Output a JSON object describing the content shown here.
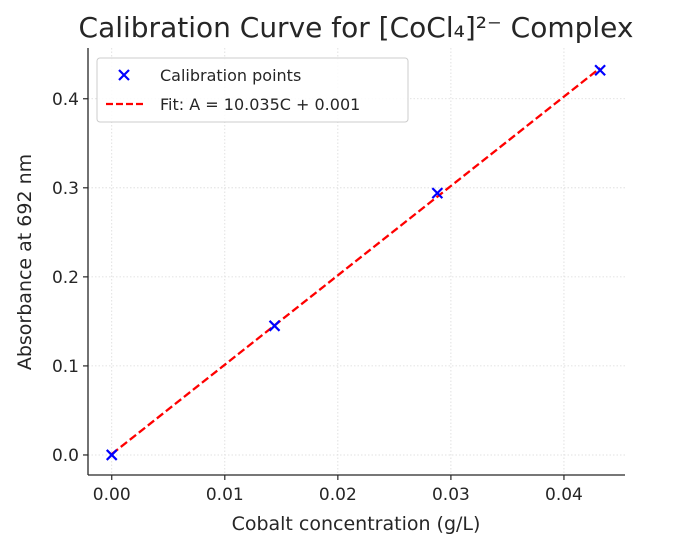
{
  "chart_data": {
    "type": "scatter",
    "title": "Calibration Curve for [CoCl₄]²⁻ Complex",
    "xlabel": "Cobalt concentration (g/L)",
    "ylabel": "Absorbance at 692 nm",
    "xlim": [
      -0.0021,
      0.0454
    ],
    "ylim": [
      -0.0225,
      0.457
    ],
    "xticks": [
      0.0,
      0.01,
      0.02,
      0.03,
      0.04
    ],
    "xtick_labels": [
      "0.00",
      "0.01",
      "0.02",
      "0.03",
      "0.04"
    ],
    "yticks": [
      0.0,
      0.1,
      0.2,
      0.3,
      0.4
    ],
    "ytick_labels": [
      "0.0",
      "0.1",
      "0.2",
      "0.3",
      "0.4"
    ],
    "grid": true,
    "legend_position": "top-left",
    "series": [
      {
        "name": "Calibration points",
        "kind": "scatter",
        "marker": "x",
        "color": "#0000ff",
        "x": [
          0.0,
          0.0144,
          0.0288,
          0.0432
        ],
        "y": [
          0.0,
          0.145,
          0.294,
          0.432
        ]
      },
      {
        "name": "Fit: A = 10.035C + 0.001",
        "kind": "line",
        "style": "dashed",
        "color": "#ff0000",
        "slope": 10.035,
        "intercept": 0.001,
        "x": [
          0.0,
          0.0432
        ]
      }
    ]
  }
}
